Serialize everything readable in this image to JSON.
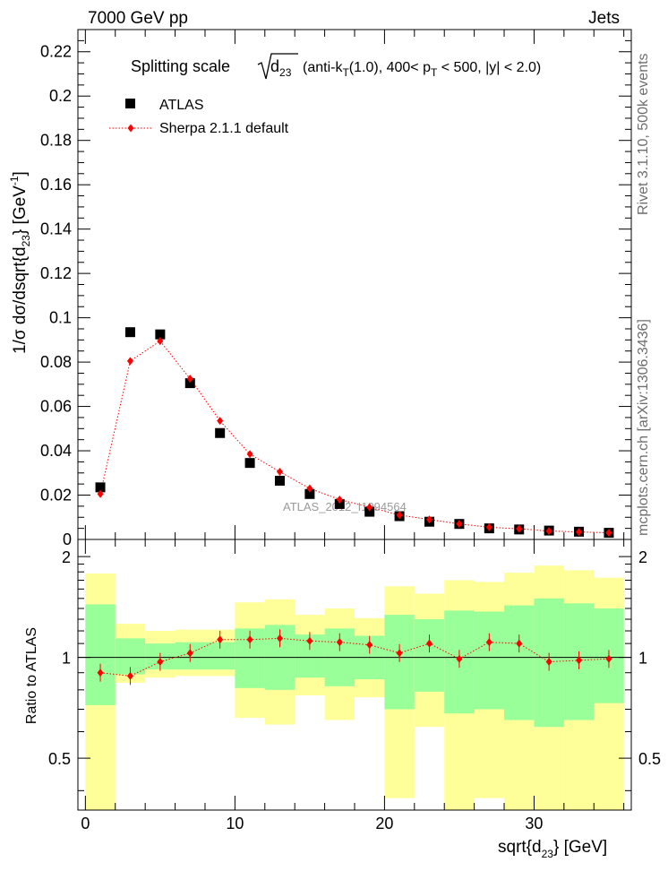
{
  "header": {
    "left": "7000 GeV pp",
    "right": "Jets"
  },
  "side_labels": {
    "rivet": "Rivet 3.1.10,  500k events",
    "mcplots": "mcplots.cern.ch [arXiv:1306.3436]"
  },
  "watermark": "ATLAS_2012_I1094564",
  "chart_data": [
    {
      "type": "scatter",
      "title": "Splitting scale √d23 (anti-kT(1.0), 400< pT < 500, |y| < 2.0)",
      "xlabel": "sqrt{d23} [GeV]",
      "ylabel": "1/σ dσ/dsqrt{d23} [GeV^-1]",
      "xlim": [
        -0.5,
        36.5
      ],
      "ylim": [
        0,
        0.23
      ],
      "yticks": [
        "0",
        "0.02",
        "0.04",
        "0.06",
        "0.08",
        "0.1",
        "0.12",
        "0.14",
        "0.16",
        "0.18",
        "0.2",
        "0.22"
      ],
      "legend": "top-left",
      "series": [
        {
          "name": "ATLAS",
          "marker": "square",
          "color": "#000000",
          "x": [
            1,
            3,
            5,
            7,
            9,
            11,
            13,
            15,
            17,
            19,
            21,
            23,
            25,
            27,
            29,
            31,
            33,
            35
          ],
          "values": [
            0.0235,
            0.0935,
            0.0925,
            0.0705,
            0.048,
            0.0345,
            0.0265,
            0.0205,
            0.016,
            0.0125,
            0.0105,
            0.008,
            0.007,
            0.005,
            0.0045,
            0.004,
            0.0035,
            0.003
          ]
        },
        {
          "name": "Sherpa 2.1.1 default",
          "marker": "diamond",
          "color": "#ff0000",
          "line": "dotted",
          "x": [
            1,
            3,
            5,
            7,
            9,
            11,
            13,
            15,
            17,
            19,
            21,
            23,
            25,
            27,
            29,
            31,
            33,
            35
          ],
          "values": [
            0.0205,
            0.0805,
            0.0895,
            0.0725,
            0.0535,
            0.0385,
            0.0305,
            0.023,
            0.018,
            0.0145,
            0.011,
            0.009,
            0.007,
            0.0055,
            0.0048,
            0.0038,
            0.0034,
            0.003
          ]
        }
      ]
    },
    {
      "type": "scatter",
      "ylabel": "Ratio to ATLAS",
      "xlim": [
        -0.5,
        36.5
      ],
      "ylim": [
        0.35,
        2.25
      ],
      "yticks": [
        "0.5",
        "1",
        "2"
      ],
      "xticks": [
        "0",
        "10",
        "20",
        "30"
      ],
      "reference_line": 1,
      "bins": [
        {
          "lo": 0,
          "hi": 2,
          "yellow": [
            0.35,
            1.78
          ],
          "green": [
            0.72,
            1.44
          ],
          "ratio": 0.9
        },
        {
          "lo": 2,
          "hi": 4,
          "yellow": [
            0.84,
            1.26
          ],
          "green": [
            0.89,
            1.14
          ],
          "ratio": 0.88
        },
        {
          "lo": 4,
          "hi": 6,
          "yellow": [
            0.87,
            1.2
          ],
          "green": [
            0.92,
            1.1
          ],
          "ratio": 0.97
        },
        {
          "lo": 6,
          "hi": 8,
          "yellow": [
            0.88,
            1.21
          ],
          "green": [
            0.92,
            1.11
          ],
          "ratio": 1.03
        },
        {
          "lo": 8,
          "hi": 10,
          "yellow": [
            0.88,
            1.21
          ],
          "green": [
            0.92,
            1.11
          ],
          "ratio": 1.13
        },
        {
          "lo": 10,
          "hi": 12,
          "yellow": [
            0.66,
            1.46
          ],
          "green": [
            0.81,
            1.22
          ],
          "ratio": 1.13
        },
        {
          "lo": 12,
          "hi": 14,
          "yellow": [
            0.63,
            1.49
          ],
          "green": [
            0.8,
            1.25
          ],
          "ratio": 1.14
        },
        {
          "lo": 14,
          "hi": 16,
          "yellow": [
            0.77,
            1.34
          ],
          "green": [
            0.87,
            1.17
          ],
          "ratio": 1.12
        },
        {
          "lo": 16,
          "hi": 18,
          "yellow": [
            0.65,
            1.4
          ],
          "green": [
            0.82,
            1.22
          ],
          "ratio": 1.11
        },
        {
          "lo": 18,
          "hi": 20,
          "yellow": [
            0.76,
            1.31
          ],
          "green": [
            0.86,
            1.16
          ],
          "ratio": 1.09
        },
        {
          "lo": 20,
          "hi": 22,
          "yellow": [
            0.38,
            1.63
          ],
          "green": [
            0.7,
            1.34
          ],
          "ratio": 1.03
        },
        {
          "lo": 22,
          "hi": 24,
          "yellow": [
            0.62,
            1.55
          ],
          "green": [
            0.79,
            1.3
          ],
          "ratio": 1.1
        },
        {
          "lo": 24,
          "hi": 26,
          "yellow": [
            0.35,
            1.7
          ],
          "green": [
            0.68,
            1.38
          ],
          "ratio": 0.99
        },
        {
          "lo": 26,
          "hi": 28,
          "yellow": [
            0.38,
            1.68
          ],
          "green": [
            0.7,
            1.37
          ],
          "ratio": 1.11
        },
        {
          "lo": 28,
          "hi": 30,
          "yellow": [
            0.35,
            1.79
          ],
          "green": [
            0.65,
            1.43
          ],
          "ratio": 1.1
        },
        {
          "lo": 30,
          "hi": 32,
          "yellow": [
            0.35,
            1.88
          ],
          "green": [
            0.62,
            1.5
          ],
          "ratio": 0.97
        },
        {
          "lo": 32,
          "hi": 34,
          "yellow": [
            0.35,
            1.82
          ],
          "green": [
            0.65,
            1.45
          ],
          "ratio": 0.98
        },
        {
          "lo": 34,
          "hi": 36,
          "yellow": [
            0.35,
            1.73
          ],
          "green": [
            0.73,
            1.4
          ],
          "ratio": 0.99
        }
      ],
      "colors": {
        "yellow": "#ffff99",
        "green": "#99ff99",
        "ratio": "#ff0000"
      }
    }
  ]
}
